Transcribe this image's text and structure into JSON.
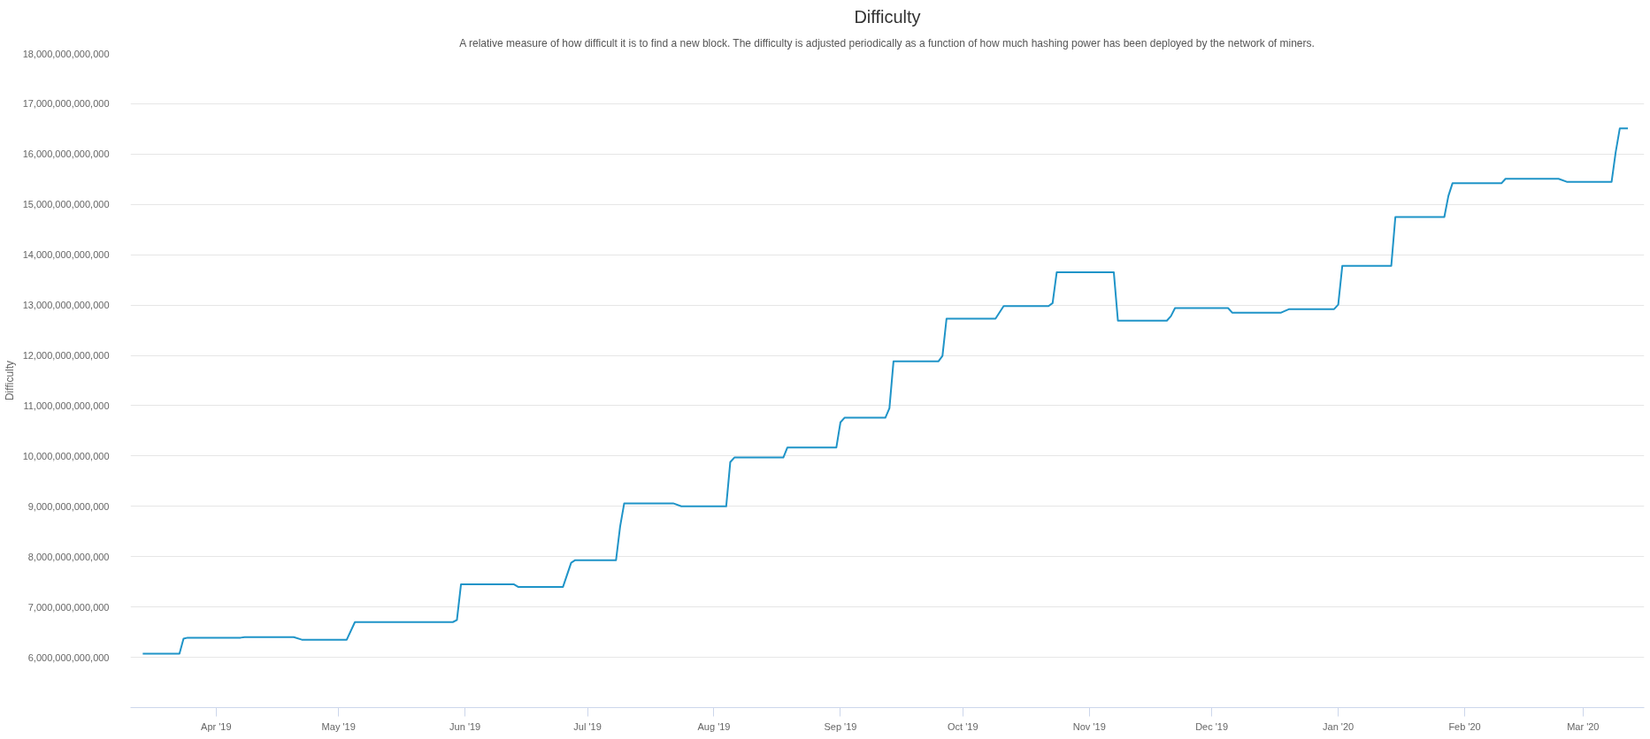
{
  "chart_data": {
    "type": "line",
    "title": "Difficulty",
    "subtitle": "A relative measure of how difficult it is to find a new block. The difficulty is adjusted periodically as a function of how much hashing power has been deployed by the network of miners.",
    "ylabel": "Difficulty",
    "x": [
      "2019-03-14",
      "2019-03-23",
      "2019-03-24",
      "2019-03-25",
      "2019-04-07",
      "2019-04-08",
      "2019-04-20",
      "2019-04-22",
      "2019-05-03",
      "2019-05-05",
      "2019-05-29",
      "2019-05-30",
      "2019-05-31",
      "2019-06-13",
      "2019-06-14",
      "2019-06-25",
      "2019-06-27",
      "2019-06-28",
      "2019-07-08",
      "2019-07-09",
      "2019-07-10",
      "2019-07-22",
      "2019-07-24",
      "2019-08-04",
      "2019-08-05",
      "2019-08-06",
      "2019-08-18",
      "2019-08-19",
      "2019-08-31",
      "2019-09-01",
      "2019-09-02",
      "2019-09-12",
      "2019-09-13",
      "2019-09-14",
      "2019-09-25",
      "2019-09-26",
      "2019-09-27",
      "2019-10-09",
      "2019-10-11",
      "2019-10-22",
      "2019-10-23",
      "2019-10-24",
      "2019-11-07",
      "2019-11-08",
      "2019-11-20",
      "2019-11-21",
      "2019-11-22",
      "2019-12-05",
      "2019-12-06",
      "2019-12-18",
      "2019-12-20",
      "2019-12-31",
      "2020-01-01",
      "2020-01-02",
      "2020-01-14",
      "2020-01-15",
      "2020-01-27",
      "2020-01-28",
      "2020-01-29",
      "2020-02-10",
      "2020-02-11",
      "2020-02-24",
      "2020-02-26",
      "2020-03-08",
      "2020-03-09",
      "2020-03-10",
      "2020-03-12"
    ],
    "series": [
      {
        "color": "#1f94c8",
        "values": [
          6070000000000,
          6070000000000,
          6370000000000,
          6390000000000,
          6390000000000,
          6400000000000,
          6400000000000,
          6350000000000,
          6350000000000,
          6700000000000,
          6700000000000,
          6740000000000,
          7450000000000,
          7450000000000,
          7400000000000,
          7400000000000,
          7880000000000,
          7930000000000,
          7930000000000,
          8600000000000,
          9060000000000,
          9060000000000,
          9000000000000,
          9000000000000,
          9880000000000,
          9970000000000,
          9970000000000,
          10170000000000,
          10170000000000,
          10670000000000,
          10760000000000,
          10760000000000,
          10950000000000,
          11880000000000,
          11880000000000,
          11990000000000,
          12730000000000,
          12730000000000,
          12980000000000,
          12980000000000,
          13040000000000,
          13650000000000,
          13650000000000,
          12690000000000,
          12690000000000,
          12780000000000,
          12940000000000,
          12940000000000,
          12850000000000,
          12850000000000,
          12920000000000,
          12920000000000,
          13010000000000,
          13780000000000,
          13780000000000,
          14750000000000,
          14750000000000,
          15170000000000,
          15420000000000,
          15420000000000,
          15510000000000,
          15510000000000,
          15450000000000,
          15450000000000,
          16040000000000,
          16510000000000,
          16510000000000
        ]
      }
    ],
    "xlim": [
      "2019-03-11",
      "2020-03-16"
    ],
    "xticks": [
      {
        "value": "2019-04-01",
        "label": "Apr '19"
      },
      {
        "value": "2019-05-01",
        "label": "May '19"
      },
      {
        "value": "2019-06-01",
        "label": "Jun '19"
      },
      {
        "value": "2019-07-01",
        "label": "Jul '19"
      },
      {
        "value": "2019-08-01",
        "label": "Aug '19"
      },
      {
        "value": "2019-09-01",
        "label": "Sep '19"
      },
      {
        "value": "2019-10-01",
        "label": "Oct '19"
      },
      {
        "value": "2019-11-01",
        "label": "Nov '19"
      },
      {
        "value": "2019-12-01",
        "label": "Dec '19"
      },
      {
        "value": "2020-01-01",
        "label": "Jan '20"
      },
      {
        "value": "2020-02-01",
        "label": "Feb '20"
      },
      {
        "value": "2020-03-01",
        "label": "Mar '20"
      }
    ],
    "ylim": [
      5000000000000,
      18000000000000
    ],
    "yticks": [
      {
        "value": 6000000000000,
        "label": "6,000,000,000,000"
      },
      {
        "value": 7000000000000,
        "label": "7,000,000,000,000"
      },
      {
        "value": 8000000000000,
        "label": "8,000,000,000,000"
      },
      {
        "value": 9000000000000,
        "label": "9,000,000,000,000"
      },
      {
        "value": 10000000000000,
        "label": "10,000,000,000,000"
      },
      {
        "value": 11000000000000,
        "label": "11,000,000,000,000"
      },
      {
        "value": 12000000000000,
        "label": "12,000,000,000,000"
      },
      {
        "value": 13000000000000,
        "label": "13,000,000,000,000"
      },
      {
        "value": 14000000000000,
        "label": "14,000,000,000,000"
      },
      {
        "value": 15000000000000,
        "label": "15,000,000,000,000"
      },
      {
        "value": 16000000000000,
        "label": "16,000,000,000,000"
      },
      {
        "value": 17000000000000,
        "label": "17,000,000,000,000"
      },
      {
        "value": 18000000000000,
        "label": "18,000,000,000,000"
      }
    ],
    "grid": "y",
    "marker": "none",
    "line_style": "solid"
  }
}
